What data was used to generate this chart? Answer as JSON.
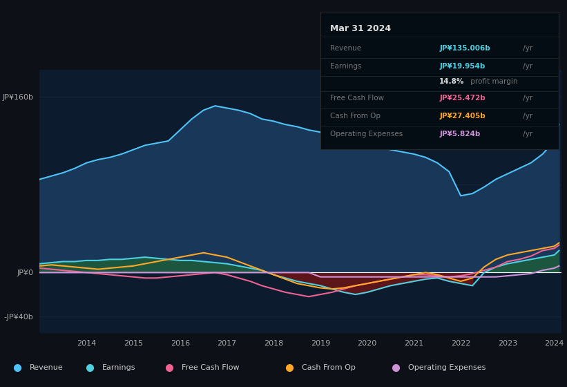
{
  "bg_color": "#0d1117",
  "years_x": [
    2013.0,
    2013.25,
    2013.5,
    2013.75,
    2014.0,
    2014.25,
    2014.5,
    2014.75,
    2015.0,
    2015.25,
    2015.5,
    2015.75,
    2016.0,
    2016.25,
    2016.5,
    2016.75,
    2017.0,
    2017.25,
    2017.5,
    2017.75,
    2018.0,
    2018.25,
    2018.5,
    2018.75,
    2019.0,
    2019.25,
    2019.5,
    2019.75,
    2020.0,
    2020.25,
    2020.5,
    2020.75,
    2021.0,
    2021.25,
    2021.5,
    2021.75,
    2022.0,
    2022.25,
    2022.5,
    2022.75,
    2023.0,
    2023.25,
    2023.5,
    2023.75,
    2024.0,
    2024.1
  ],
  "revenue": [
    85,
    88,
    91,
    95,
    100,
    103,
    105,
    108,
    112,
    116,
    118,
    120,
    130,
    140,
    148,
    152,
    150,
    148,
    145,
    140,
    138,
    135,
    133,
    130,
    128,
    125,
    122,
    120,
    118,
    115,
    112,
    110,
    108,
    105,
    100,
    92,
    70,
    72,
    78,
    85,
    90,
    95,
    100,
    108,
    120,
    135
  ],
  "earnings": [
    8,
    9,
    10,
    10,
    11,
    11,
    12,
    12,
    13,
    14,
    13,
    12,
    11,
    11,
    10,
    9,
    8,
    6,
    4,
    2,
    -2,
    -5,
    -8,
    -10,
    -12,
    -15,
    -18,
    -20,
    -18,
    -15,
    -12,
    -10,
    -8,
    -6,
    -5,
    -8,
    -10,
    -12,
    0,
    5,
    8,
    10,
    12,
    14,
    16,
    20
  ],
  "free_cash_flow": [
    4,
    3,
    2,
    1,
    0,
    -1,
    -2,
    -3,
    -4,
    -5,
    -5,
    -4,
    -3,
    -2,
    -1,
    0,
    -2,
    -5,
    -8,
    -12,
    -15,
    -18,
    -20,
    -22,
    -20,
    -18,
    -15,
    -12,
    -10,
    -8,
    -6,
    -4,
    -2,
    -2,
    -3,
    -4,
    -3,
    -1,
    2,
    5,
    10,
    12,
    15,
    20,
    22,
    25
  ],
  "cash_from_op": [
    6,
    7,
    6,
    5,
    4,
    3,
    4,
    5,
    6,
    8,
    10,
    12,
    14,
    16,
    18,
    16,
    14,
    10,
    6,
    2,
    -2,
    -6,
    -10,
    -12,
    -14,
    -15,
    -14,
    -12,
    -10,
    -8,
    -6,
    -4,
    -2,
    0,
    -2,
    -5,
    -8,
    -5,
    5,
    12,
    16,
    18,
    20,
    22,
    24,
    27
  ],
  "op_expenses": [
    0,
    0,
    0,
    0,
    0,
    0,
    0,
    0,
    0,
    0,
    0,
    0,
    0,
    0,
    0,
    0,
    0,
    0,
    0,
    0,
    0,
    0,
    0,
    0,
    -4,
    -4,
    -4,
    -4,
    -4,
    -4,
    -4,
    -4,
    -4,
    -4,
    -4,
    -4,
    -4,
    -4,
    -4,
    -4,
    -3,
    -2,
    -1,
    2,
    4,
    6
  ],
  "revenue_color": "#4fc3f7",
  "earnings_color": "#4dd0e1",
  "fcf_color": "#f06292",
  "cash_op_color": "#ffa726",
  "op_exp_color": "#ce93d8",
  "revenue_fill_color": "#1a3a5c",
  "earnings_fill_pos_color": "#1e5c3a",
  "earnings_fill_neg_color": "#6b1515",
  "zero_line_color": "#ffffff",
  "grid_color": "#2a3548",
  "yticks_labels": [
    "JP¥160b",
    "JP¥0",
    "-JP¥40b"
  ],
  "yticks_values": [
    160,
    0,
    -40
  ],
  "xticks": [
    2014,
    2015,
    2016,
    2017,
    2018,
    2019,
    2020,
    2021,
    2022,
    2023,
    2024
  ],
  "xlim_min": 2013.0,
  "xlim_max": 2024.15,
  "ylim_min": -55,
  "ylim_max": 185,
  "tooltip_title": "Mar 31 2024",
  "tooltip_revenue_label": "Revenue",
  "tooltip_revenue_val": "JP¥135.006b",
  "tooltip_earnings_label": "Earnings",
  "tooltip_earnings_val": "JP¥19.954b",
  "tooltip_margin_val": "14.8%",
  "tooltip_margin_text": " profit margin",
  "tooltip_fcf_label": "Free Cash Flow",
  "tooltip_fcf_val": "JP¥25.472b",
  "tooltip_cashop_label": "Cash From Op",
  "tooltip_cashop_val": "JP¥27.405b",
  "tooltip_opexp_label": "Operating Expenses",
  "tooltip_opexp_val": "JP¥5.824b",
  "tooltip_suffix": " /yr",
  "legend_items": [
    "Revenue",
    "Earnings",
    "Free Cash Flow",
    "Cash From Op",
    "Operating Expenses"
  ],
  "legend_colors": [
    "#4fc3f7",
    "#4dd0e1",
    "#f06292",
    "#ffa726",
    "#ce93d8"
  ]
}
